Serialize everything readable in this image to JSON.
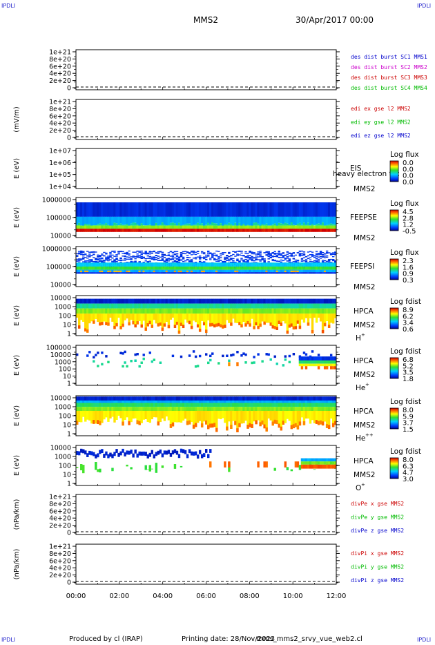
{
  "corners": {
    "tl": "IPDLI",
    "tr": "IPDLI",
    "bl": "IPDLI",
    "br": "IPDLI"
  },
  "header": {
    "spacecraft": "MMS2",
    "date": "30/Apr/2017 00:00"
  },
  "footer": {
    "produced_by": "Produced by cl (IRAP)",
    "printing_date": "Printing date: 28/Nov/2023",
    "script": "mms_mms2_srvy_vue_web2.cl"
  },
  "chart_data": [
    {
      "type": "line",
      "panel": 1,
      "ylabel": "",
      "ylim": [
        0,
        1e+21
      ],
      "yticks": [
        "1e+21",
        "8e+20",
        "6e+20",
        "4e+20",
        "2e+20",
        "0"
      ],
      "series": [
        {
          "name": "des dist burst SC1 MMS1",
          "color": "#0000cc",
          "values": []
        },
        {
          "name": "des dist burst SC2 MMS2",
          "color": "#cc00cc",
          "values": []
        },
        {
          "name": "des dist burst SC3 MMS3",
          "color": "#cc0000",
          "values": []
        },
        {
          "name": "des dist burst SC4 MMS4",
          "color": "#00bb00",
          "values": []
        }
      ]
    },
    {
      "type": "line",
      "panel": 2,
      "ylabel": "(mV/m)",
      "ylim": [
        0,
        1e+21
      ],
      "yticks": [
        "1e+21",
        "8e+20",
        "6e+20",
        "4e+20",
        "2e+20",
        "0"
      ],
      "series": [
        {
          "name": "edi ex gse l2 MMS2",
          "color": "#cc0000",
          "values": []
        },
        {
          "name": "edi ey gse l2 MMS2",
          "color": "#00bb00",
          "values": []
        },
        {
          "name": "edi ez gse l2 MMS2",
          "color": "#0000cc",
          "values": []
        }
      ]
    },
    {
      "type": "heatmap",
      "panel": 3,
      "ylabel": "E (eV)",
      "scale": "log",
      "ylim": [
        10000.0,
        10000000.0
      ],
      "yticks": [
        "1e+07",
        "1e+06",
        "1e+05",
        "1e+04"
      ],
      "instrument": "EIS",
      "spacecraft": "MMS2",
      "note": "heavy electron tot",
      "colorbar": {
        "title": "Log flux",
        "ticks": [
          "0.0",
          "0.0",
          "0.0",
          "0.0"
        ]
      },
      "data": "empty"
    },
    {
      "type": "heatmap",
      "panel": 4,
      "ylabel": "E (eV)",
      "scale": "log",
      "ylim": [
        10000,
        1000000
      ],
      "yticks": [
        "1000000",
        "100000",
        "10000"
      ],
      "instrument": "FEEPSE",
      "spacecraft": "MMS2",
      "colorbar": {
        "title": "Log flux",
        "ticks": [
          "4.5",
          "2.8",
          "1.2",
          "-0.5"
        ]
      }
    },
    {
      "type": "heatmap",
      "panel": 5,
      "ylabel": "E (eV)",
      "scale": "log",
      "ylim": [
        10000,
        1000000
      ],
      "yticks": [
        "1000000",
        "100000",
        "10000"
      ],
      "instrument": "FEEPSI",
      "spacecraft": "MMS2",
      "colorbar": {
        "title": "Log flux",
        "ticks": [
          "2.3",
          "1.6",
          "0.9",
          "0.3"
        ]
      }
    },
    {
      "type": "heatmap",
      "panel": 6,
      "ylabel": "E (eV)",
      "scale": "log",
      "ylim": [
        1,
        40000
      ],
      "yticks": [
        "10000",
        "1000",
        "100",
        "10",
        "1"
      ],
      "instrument": "HPCA",
      "spacecraft": "MMS2",
      "species": "H",
      "charge": "+",
      "colorbar": {
        "title": "Log fdist",
        "ticks": [
          "8.9",
          "6.2",
          "3.4",
          "0.6"
        ]
      }
    },
    {
      "type": "heatmap",
      "panel": 7,
      "ylabel": "E (eV)",
      "scale": "log",
      "ylim": [
        1,
        100000
      ],
      "yticks": [
        "100000",
        "10000",
        "1000",
        "100",
        "10",
        "1"
      ],
      "instrument": "HPCA",
      "spacecraft": "MMS2",
      "species": "He",
      "charge": "+",
      "colorbar": {
        "title": "Log fdist",
        "ticks": [
          "6.8",
          "5.2",
          "3.5",
          "1.8"
        ]
      }
    },
    {
      "type": "heatmap",
      "panel": 8,
      "ylabel": "E (eV)",
      "scale": "log",
      "ylim": [
        1,
        40000
      ],
      "yticks": [
        "10000",
        "1000",
        "100",
        "10",
        "1"
      ],
      "instrument": "HPCA",
      "spacecraft": "MMS2",
      "species": "He",
      "charge": "++",
      "colorbar": {
        "title": "Log fdist",
        "ticks": [
          "8.0",
          "5.9",
          "3.7",
          "1.5"
        ]
      }
    },
    {
      "type": "heatmap",
      "panel": 9,
      "ylabel": "E (eV)",
      "scale": "log",
      "ylim": [
        1,
        40000
      ],
      "yticks": [
        "10000",
        "1000",
        "100",
        "10",
        "1"
      ],
      "instrument": "HPCA",
      "spacecraft": "MMS2",
      "species": "O",
      "charge": "+",
      "colorbar": {
        "title": "Log fdist",
        "ticks": [
          "8.0",
          "6.3",
          "4.7",
          "3.0"
        ]
      }
    },
    {
      "type": "line",
      "panel": 10,
      "ylabel": "(nPa/km)",
      "ylim": [
        0,
        1e+21
      ],
      "yticks": [
        "1e+21",
        "8e+20",
        "6e+20",
        "4e+20",
        "2e+20",
        "0"
      ],
      "series": [
        {
          "name": "divPe x gse MMS2",
          "color": "#cc0000",
          "values": []
        },
        {
          "name": "divPe y gse MMS2",
          "color": "#00bb00",
          "values": []
        },
        {
          "name": "divPe z gse MMS2",
          "color": "#0000cc",
          "values": []
        }
      ]
    },
    {
      "type": "line",
      "panel": 11,
      "ylabel": "(nPa/km)",
      "ylim": [
        0,
        1e+21
      ],
      "yticks": [
        "1e+21",
        "8e+20",
        "6e+20",
        "4e+20",
        "2e+20",
        "0"
      ],
      "series": [
        {
          "name": "divPi x gse MMS2",
          "color": "#cc0000",
          "values": []
        },
        {
          "name": "divPi y gse MMS2",
          "color": "#00bb00",
          "values": []
        },
        {
          "name": "divPi z gse MMS2",
          "color": "#0000cc",
          "values": []
        }
      ]
    }
  ],
  "time_axis": {
    "ticks": [
      "00:00",
      "02:00",
      "04:00",
      "06:00",
      "08:00",
      "10:00",
      "12:00"
    ]
  }
}
